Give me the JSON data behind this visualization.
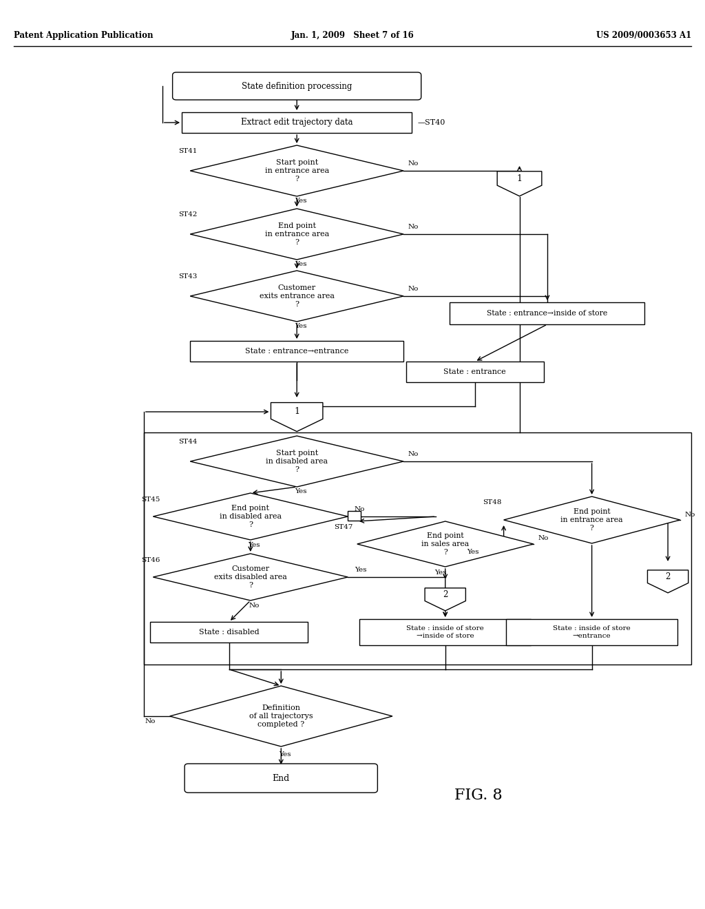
{
  "title_left": "Patent Application Publication",
  "title_mid": "Jan. 1, 2009   Sheet 7 of 16",
  "title_right": "US 2009/0003653 A1",
  "fig_label": "FIG. 8",
  "background": "#ffffff",
  "lc": "#000000",
  "tc": "#000000"
}
